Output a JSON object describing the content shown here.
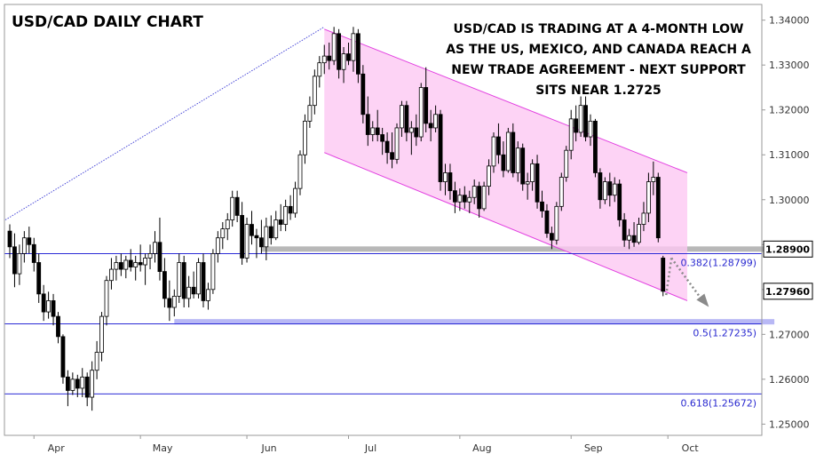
{
  "chart_data": {
    "type": "candlestick",
    "title": "USD/CAD DAILY CHART",
    "annotation": [
      "USD/CAD IS TRADING AT A 4-MONTH LOW",
      "AS THE US, MEXICO, AND CANADA REACH A",
      "NEW TRADE AGREEMENT - NEXT SUPPORT",
      "SITS NEAR 1.2725"
    ],
    "y_axis": {
      "ticks": [
        "1.34000",
        "1.33000",
        "1.32000",
        "1.31000",
        "1.30000",
        "1.29000",
        "1.28000",
        "1.27000",
        "1.26000",
        "1.25000"
      ],
      "ylim": [
        1.2475,
        1.3435
      ],
      "side": "right"
    },
    "x_axis": {
      "labels": [
        {
          "label": "Apr",
          "index": 5
        },
        {
          "label": "May",
          "index": 27
        },
        {
          "label": "Jun",
          "index": 49
        },
        {
          "label": "Jul",
          "index": 70
        },
        {
          "label": "Aug",
          "index": 93
        },
        {
          "label": "Sep",
          "index": 116
        },
        {
          "label": "Oct",
          "index": 136
        }
      ]
    },
    "price_badges": [
      {
        "label": "1.28900",
        "value": 1.289
      },
      {
        "label": "1.27960",
        "value": 1.2796
      }
    ],
    "fibonacci_levels": [
      {
        "label": "0.382(1.28799)",
        "value": 1.28799
      },
      {
        "label": "0.5(1.27235)",
        "value": 1.27235
      },
      {
        "label": "0.618(1.25672)",
        "value": 1.25672
      }
    ],
    "channel": {
      "upper": [
        [
          65,
          1.338
        ],
        [
          140,
          1.306
        ]
      ],
      "lower": [
        [
          65,
          1.3105
        ],
        [
          140,
          1.2775
        ]
      ]
    },
    "support_zones": [
      {
        "value": 1.289,
        "from_index": 52,
        "to_index": 158,
        "color": "#b8b8b8"
      },
      {
        "value": 1.2728,
        "from_index": 34,
        "to_index": 158,
        "color": "#b8b8f5"
      }
    ],
    "trendline": [
      [
        0,
        1.2955
      ],
      [
        65,
        1.3385
      ]
    ],
    "projection": [
      [
        136,
        1.287
      ],
      [
        143,
        1.2775
      ]
    ],
    "candles": [
      {
        "o": 1.293,
        "h": 1.2945,
        "l": 1.287,
        "c": 1.2895
      },
      {
        "o": 1.2895,
        "h": 1.2925,
        "l": 1.2805,
        "c": 1.2835
      },
      {
        "o": 1.2835,
        "h": 1.29,
        "l": 1.281,
        "c": 1.288
      },
      {
        "o": 1.288,
        "h": 1.293,
        "l": 1.286,
        "c": 1.2915
      },
      {
        "o": 1.2915,
        "h": 1.294,
        "l": 1.288,
        "c": 1.29
      },
      {
        "o": 1.29,
        "h": 1.2915,
        "l": 1.284,
        "c": 1.286
      },
      {
        "o": 1.286,
        "h": 1.288,
        "l": 1.277,
        "c": 1.279
      },
      {
        "o": 1.279,
        "h": 1.281,
        "l": 1.273,
        "c": 1.275
      },
      {
        "o": 1.275,
        "h": 1.2795,
        "l": 1.2735,
        "c": 1.2775
      },
      {
        "o": 1.2775,
        "h": 1.279,
        "l": 1.272,
        "c": 1.274
      },
      {
        "o": 1.274,
        "h": 1.275,
        "l": 1.268,
        "c": 1.2695
      },
      {
        "o": 1.2695,
        "h": 1.27,
        "l": 1.259,
        "c": 1.2605
      },
      {
        "o": 1.2605,
        "h": 1.262,
        "l": 1.254,
        "c": 1.2575
      },
      {
        "o": 1.2575,
        "h": 1.2615,
        "l": 1.2565,
        "c": 1.26
      },
      {
        "o": 1.26,
        "h": 1.261,
        "l": 1.256,
        "c": 1.258
      },
      {
        "o": 1.258,
        "h": 1.2625,
        "l": 1.256,
        "c": 1.2605
      },
      {
        "o": 1.2605,
        "h": 1.2615,
        "l": 1.254,
        "c": 1.256
      },
      {
        "o": 1.256,
        "h": 1.264,
        "l": 1.253,
        "c": 1.262
      },
      {
        "o": 1.262,
        "h": 1.2685,
        "l": 1.26,
        "c": 1.266
      },
      {
        "o": 1.266,
        "h": 1.275,
        "l": 1.264,
        "c": 1.274
      },
      {
        "o": 1.274,
        "h": 1.283,
        "l": 1.272,
        "c": 1.282
      },
      {
        "o": 1.282,
        "h": 1.287,
        "l": 1.28,
        "c": 1.2845
      },
      {
        "o": 1.2845,
        "h": 1.2875,
        "l": 1.282,
        "c": 1.286
      },
      {
        "o": 1.286,
        "h": 1.288,
        "l": 1.283,
        "c": 1.2845
      },
      {
        "o": 1.2845,
        "h": 1.2875,
        "l": 1.2825,
        "c": 1.2865
      },
      {
        "o": 1.2865,
        "h": 1.289,
        "l": 1.284,
        "c": 1.285
      },
      {
        "o": 1.285,
        "h": 1.2875,
        "l": 1.282,
        "c": 1.286
      },
      {
        "o": 1.286,
        "h": 1.29,
        "l": 1.284,
        "c": 1.2855
      },
      {
        "o": 1.2855,
        "h": 1.288,
        "l": 1.281,
        "c": 1.287
      },
      {
        "o": 1.287,
        "h": 1.29,
        "l": 1.2845,
        "c": 1.288
      },
      {
        "o": 1.288,
        "h": 1.293,
        "l": 1.286,
        "c": 1.2905
      },
      {
        "o": 1.2905,
        "h": 1.296,
        "l": 1.282,
        "c": 1.284
      },
      {
        "o": 1.284,
        "h": 1.287,
        "l": 1.276,
        "c": 1.278
      },
      {
        "o": 1.278,
        "h": 1.282,
        "l": 1.273,
        "c": 1.276
      },
      {
        "o": 1.276,
        "h": 1.28,
        "l": 1.274,
        "c": 1.2785
      },
      {
        "o": 1.2785,
        "h": 1.288,
        "l": 1.277,
        "c": 1.286
      },
      {
        "o": 1.286,
        "h": 1.2875,
        "l": 1.276,
        "c": 1.278
      },
      {
        "o": 1.278,
        "h": 1.283,
        "l": 1.276,
        "c": 1.2805
      },
      {
        "o": 1.2805,
        "h": 1.284,
        "l": 1.278,
        "c": 1.279
      },
      {
        "o": 1.279,
        "h": 1.287,
        "l": 1.278,
        "c": 1.286
      },
      {
        "o": 1.286,
        "h": 1.288,
        "l": 1.276,
        "c": 1.2775
      },
      {
        "o": 1.2775,
        "h": 1.2815,
        "l": 1.2755,
        "c": 1.28
      },
      {
        "o": 1.28,
        "h": 1.289,
        "l": 1.279,
        "c": 1.288
      },
      {
        "o": 1.288,
        "h": 1.293,
        "l": 1.286,
        "c": 1.2915
      },
      {
        "o": 1.2915,
        "h": 1.295,
        "l": 1.289,
        "c": 1.2935
      },
      {
        "o": 1.2935,
        "h": 1.297,
        "l": 1.291,
        "c": 1.2955
      },
      {
        "o": 1.2955,
        "h": 1.302,
        "l": 1.294,
        "c": 1.3005
      },
      {
        "o": 1.3005,
        "h": 1.302,
        "l": 1.295,
        "c": 1.2965
      },
      {
        "o": 1.2965,
        "h": 1.2995,
        "l": 1.2855,
        "c": 1.287
      },
      {
        "o": 1.287,
        "h": 1.296,
        "l": 1.286,
        "c": 1.2945
      },
      {
        "o": 1.2945,
        "h": 1.2975,
        "l": 1.29,
        "c": 1.292
      },
      {
        "o": 1.292,
        "h": 1.2935,
        "l": 1.287,
        "c": 1.2915
      },
      {
        "o": 1.2915,
        "h": 1.2955,
        "l": 1.288,
        "c": 1.2895
      },
      {
        "o": 1.2895,
        "h": 1.296,
        "l": 1.2865,
        "c": 1.294
      },
      {
        "o": 1.294,
        "h": 1.2965,
        "l": 1.29,
        "c": 1.2915
      },
      {
        "o": 1.2915,
        "h": 1.2975,
        "l": 1.291,
        "c": 1.2955
      },
      {
        "o": 1.2955,
        "h": 1.299,
        "l": 1.293,
        "c": 1.2945
      },
      {
        "o": 1.2945,
        "h": 1.3,
        "l": 1.293,
        "c": 1.2985
      },
      {
        "o": 1.2985,
        "h": 1.301,
        "l": 1.2955,
        "c": 1.297
      },
      {
        "o": 1.297,
        "h": 1.304,
        "l": 1.296,
        "c": 1.3025
      },
      {
        "o": 1.3025,
        "h": 1.311,
        "l": 1.301,
        "c": 1.31
      },
      {
        "o": 1.31,
        "h": 1.319,
        "l": 1.308,
        "c": 1.3175
      },
      {
        "o": 1.3175,
        "h": 1.323,
        "l": 1.316,
        "c": 1.321
      },
      {
        "o": 1.321,
        "h": 1.329,
        "l": 1.319,
        "c": 1.3275
      },
      {
        "o": 1.3275,
        "h": 1.332,
        "l": 1.325,
        "c": 1.3305
      },
      {
        "o": 1.3305,
        "h": 1.3345,
        "l": 1.328,
        "c": 1.332
      },
      {
        "o": 1.332,
        "h": 1.335,
        "l": 1.329,
        "c": 1.331
      },
      {
        "o": 1.331,
        "h": 1.3385,
        "l": 1.33,
        "c": 1.337
      },
      {
        "o": 1.337,
        "h": 1.338,
        "l": 1.327,
        "c": 1.329
      },
      {
        "o": 1.329,
        "h": 1.334,
        "l": 1.326,
        "c": 1.3325
      },
      {
        "o": 1.3325,
        "h": 1.335,
        "l": 1.33,
        "c": 1.331
      },
      {
        "o": 1.331,
        "h": 1.3385,
        "l": 1.3285,
        "c": 1.337
      },
      {
        "o": 1.337,
        "h": 1.338,
        "l": 1.326,
        "c": 1.328
      },
      {
        "o": 1.328,
        "h": 1.33,
        "l": 1.317,
        "c": 1.319
      },
      {
        "o": 1.319,
        "h": 1.323,
        "l": 1.312,
        "c": 1.3145
      },
      {
        "o": 1.3145,
        "h": 1.3175,
        "l": 1.313,
        "c": 1.316
      },
      {
        "o": 1.316,
        "h": 1.32,
        "l": 1.313,
        "c": 1.3145
      },
      {
        "o": 1.3145,
        "h": 1.316,
        "l": 1.31,
        "c": 1.313
      },
      {
        "o": 1.313,
        "h": 1.315,
        "l": 1.308,
        "c": 1.3105
      },
      {
        "o": 1.3105,
        "h": 1.315,
        "l": 1.307,
        "c": 1.309
      },
      {
        "o": 1.309,
        "h": 1.317,
        "l": 1.308,
        "c": 1.316
      },
      {
        "o": 1.316,
        "h": 1.322,
        "l": 1.314,
        "c": 1.321
      },
      {
        "o": 1.321,
        "h": 1.322,
        "l": 1.313,
        "c": 1.315
      },
      {
        "o": 1.315,
        "h": 1.3175,
        "l": 1.31,
        "c": 1.316
      },
      {
        "o": 1.316,
        "h": 1.319,
        "l": 1.312,
        "c": 1.314
      },
      {
        "o": 1.314,
        "h": 1.326,
        "l": 1.313,
        "c": 1.325
      },
      {
        "o": 1.325,
        "h": 1.3295,
        "l": 1.315,
        "c": 1.317
      },
      {
        "o": 1.317,
        "h": 1.32,
        "l": 1.313,
        "c": 1.316
      },
      {
        "o": 1.316,
        "h": 1.321,
        "l": 1.315,
        "c": 1.319
      },
      {
        "o": 1.319,
        "h": 1.32,
        "l": 1.302,
        "c": 1.304
      },
      {
        "o": 1.304,
        "h": 1.308,
        "l": 1.301,
        "c": 1.306
      },
      {
        "o": 1.306,
        "h": 1.308,
        "l": 1.3,
        "c": 1.302
      },
      {
        "o": 1.302,
        "h": 1.304,
        "l": 1.297,
        "c": 1.2995
      },
      {
        "o": 1.2995,
        "h": 1.3025,
        "l": 1.2975,
        "c": 1.301
      },
      {
        "o": 1.301,
        "h": 1.303,
        "l": 1.298,
        "c": 1.2995
      },
      {
        "o": 1.2995,
        "h": 1.302,
        "l": 1.297,
        "c": 1.3005
      },
      {
        "o": 1.3005,
        "h": 1.3045,
        "l": 1.299,
        "c": 1.303
      },
      {
        "o": 1.303,
        "h": 1.304,
        "l": 1.296,
        "c": 1.298
      },
      {
        "o": 1.298,
        "h": 1.304,
        "l": 1.2975,
        "c": 1.303
      },
      {
        "o": 1.303,
        "h": 1.309,
        "l": 1.301,
        "c": 1.3075
      },
      {
        "o": 1.3075,
        "h": 1.315,
        "l": 1.306,
        "c": 1.314
      },
      {
        "o": 1.314,
        "h": 1.317,
        "l": 1.308,
        "c": 1.31
      },
      {
        "o": 1.31,
        "h": 1.313,
        "l": 1.305,
        "c": 1.3065
      },
      {
        "o": 1.3065,
        "h": 1.316,
        "l": 1.306,
        "c": 1.315
      },
      {
        "o": 1.315,
        "h": 1.317,
        "l": 1.305,
        "c": 1.306
      },
      {
        "o": 1.306,
        "h": 1.313,
        "l": 1.304,
        "c": 1.3115
      },
      {
        "o": 1.3115,
        "h": 1.3125,
        "l": 1.302,
        "c": 1.3035
      },
      {
        "o": 1.3035,
        "h": 1.306,
        "l": 1.3,
        "c": 1.304
      },
      {
        "o": 1.304,
        "h": 1.309,
        "l": 1.302,
        "c": 1.308
      },
      {
        "o": 1.308,
        "h": 1.31,
        "l": 1.298,
        "c": 1.2995
      },
      {
        "o": 1.2995,
        "h": 1.302,
        "l": 1.296,
        "c": 1.2975
      },
      {
        "o": 1.2975,
        "h": 1.299,
        "l": 1.2915,
        "c": 1.2925
      },
      {
        "o": 1.2925,
        "h": 1.294,
        "l": 1.289,
        "c": 1.291
      },
      {
        "o": 1.291,
        "h": 1.2995,
        "l": 1.29,
        "c": 1.2985
      },
      {
        "o": 1.2985,
        "h": 1.306,
        "l": 1.2975,
        "c": 1.305
      },
      {
        "o": 1.305,
        "h": 1.312,
        "l": 1.304,
        "c": 1.311
      },
      {
        "o": 1.311,
        "h": 1.32,
        "l": 1.309,
        "c": 1.318
      },
      {
        "o": 1.318,
        "h": 1.321,
        "l": 1.313,
        "c": 1.315
      },
      {
        "o": 1.315,
        "h": 1.323,
        "l": 1.314,
        "c": 1.321
      },
      {
        "o": 1.321,
        "h": 1.323,
        "l": 1.313,
        "c": 1.314
      },
      {
        "o": 1.314,
        "h": 1.319,
        "l": 1.312,
        "c": 1.3175
      },
      {
        "o": 1.3175,
        "h": 1.318,
        "l": 1.305,
        "c": 1.306
      },
      {
        "o": 1.306,
        "h": 1.307,
        "l": 1.298,
        "c": 1.3
      },
      {
        "o": 1.3,
        "h": 1.305,
        "l": 1.299,
        "c": 1.304
      },
      {
        "o": 1.304,
        "h": 1.306,
        "l": 1.2985,
        "c": 1.301
      },
      {
        "o": 1.301,
        "h": 1.305,
        "l": 1.2995,
        "c": 1.3035
      },
      {
        "o": 1.3035,
        "h": 1.3045,
        "l": 1.294,
        "c": 1.2955
      },
      {
        "o": 1.2955,
        "h": 1.297,
        "l": 1.2895,
        "c": 1.291
      },
      {
        "o": 1.291,
        "h": 1.2935,
        "l": 1.289,
        "c": 1.292
      },
      {
        "o": 1.292,
        "h": 1.295,
        "l": 1.2895,
        "c": 1.2905
      },
      {
        "o": 1.2905,
        "h": 1.296,
        "l": 1.29,
        "c": 1.2945
      },
      {
        "o": 1.2945,
        "h": 1.2995,
        "l": 1.293,
        "c": 1.297
      },
      {
        "o": 1.297,
        "h": 1.306,
        "l": 1.295,
        "c": 1.304
      },
      {
        "o": 1.304,
        "h": 1.3085,
        "l": 1.301,
        "c": 1.305
      },
      {
        "o": 1.305,
        "h": 1.306,
        "l": 1.2905,
        "c": 1.2915
      },
      {
        "o": 1.287,
        "h": 1.2875,
        "l": 1.2785,
        "c": 1.2796
      }
    ]
  }
}
